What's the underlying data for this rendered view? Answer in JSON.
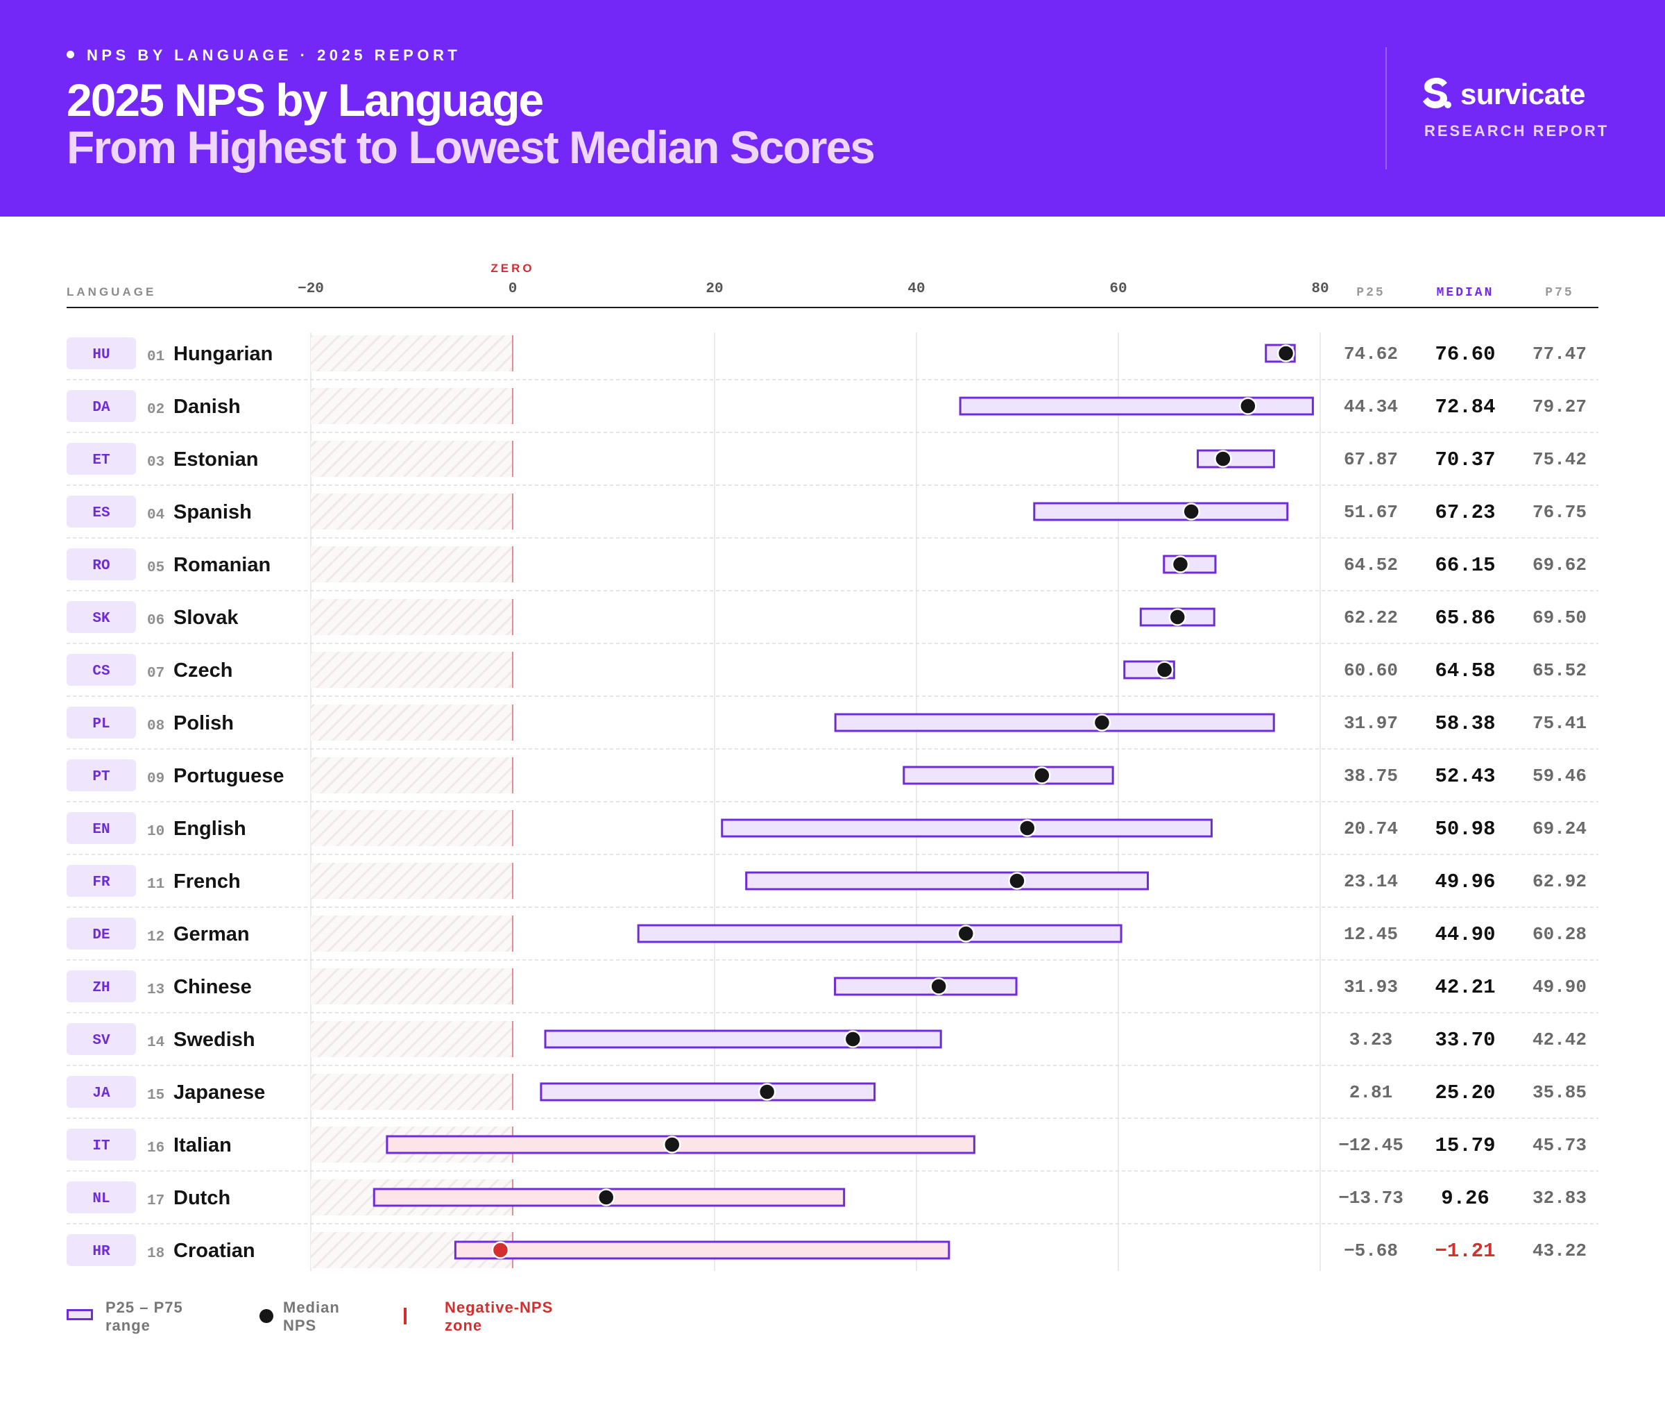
{
  "header": {
    "kicker": "NPS BY LANGUAGE · 2025 REPORT",
    "title_line1": "2025 NPS by Language",
    "title_line2": "From Highest to Lowest Median Scores",
    "brand_name": "survicate",
    "brand_sub": "RESEARCH REPORT"
  },
  "colors": {
    "header_bg": "#7328f7",
    "range_border": "#6e2bd9",
    "range_fill": "#efe4fd",
    "range_fill_negative": "#fde4e8",
    "median_dot": "#161616",
    "negative": "#d32f2f",
    "badge_bg": "#efe6fd",
    "badge_text": "#6e2bd9",
    "median_header": "#7328f7"
  },
  "columns": {
    "language": "LANGUAGE",
    "p25": "P25",
    "median": "MEDIAN",
    "p75": "P75",
    "zero_label": "ZERO"
  },
  "legend": {
    "range": [
      "P25 – P75",
      "range"
    ],
    "median": [
      "Median",
      "NPS"
    ],
    "negative": [
      "Negative-NPS",
      "zone"
    ]
  },
  "chart_data": {
    "type": "range",
    "title": "2025 NPS by Language",
    "subtitle": "From Highest to Lowest Median Scores",
    "xlim": [
      -20,
      80
    ],
    "xticks": [
      -20,
      0,
      20,
      40,
      60,
      80
    ],
    "rows": [
      {
        "rank": "01",
        "code": "HU",
        "language": "Hungarian",
        "p25": 74.62,
        "median": 76.6,
        "p75": 77.47
      },
      {
        "rank": "02",
        "code": "DA",
        "language": "Danish",
        "p25": 44.34,
        "median": 72.84,
        "p75": 79.27
      },
      {
        "rank": "03",
        "code": "ET",
        "language": "Estonian",
        "p25": 67.87,
        "median": 70.37,
        "p75": 75.42
      },
      {
        "rank": "04",
        "code": "ES",
        "language": "Spanish",
        "p25": 51.67,
        "median": 67.23,
        "p75": 76.75
      },
      {
        "rank": "05",
        "code": "RO",
        "language": "Romanian",
        "p25": 64.52,
        "median": 66.15,
        "p75": 69.62
      },
      {
        "rank": "06",
        "code": "SK",
        "language": "Slovak",
        "p25": 62.22,
        "median": 65.86,
        "p75": 69.5
      },
      {
        "rank": "07",
        "code": "CS",
        "language": "Czech",
        "p25": 60.6,
        "median": 64.58,
        "p75": 65.52
      },
      {
        "rank": "08",
        "code": "PL",
        "language": "Polish",
        "p25": 31.97,
        "median": 58.38,
        "p75": 75.41
      },
      {
        "rank": "09",
        "code": "PT",
        "language": "Portuguese",
        "p25": 38.75,
        "median": 52.43,
        "p75": 59.46
      },
      {
        "rank": "10",
        "code": "EN",
        "language": "English",
        "p25": 20.74,
        "median": 50.98,
        "p75": 69.24
      },
      {
        "rank": "11",
        "code": "FR",
        "language": "French",
        "p25": 23.14,
        "median": 49.96,
        "p75": 62.92
      },
      {
        "rank": "12",
        "code": "DE",
        "language": "German",
        "p25": 12.45,
        "median": 44.9,
        "p75": 60.28
      },
      {
        "rank": "13",
        "code": "ZH",
        "language": "Chinese",
        "p25": 31.93,
        "median": 42.21,
        "p75": 49.9
      },
      {
        "rank": "14",
        "code": "SV",
        "language": "Swedish",
        "p25": 3.23,
        "median": 33.7,
        "p75": 42.42
      },
      {
        "rank": "15",
        "code": "JA",
        "language": "Japanese",
        "p25": 2.81,
        "median": 25.2,
        "p75": 35.85
      },
      {
        "rank": "16",
        "code": "IT",
        "language": "Italian",
        "p25": -12.45,
        "median": 15.79,
        "p75": 45.73
      },
      {
        "rank": "17",
        "code": "NL",
        "language": "Dutch",
        "p25": -13.73,
        "median": 9.26,
        "p75": 32.83
      },
      {
        "rank": "18",
        "code": "HR",
        "language": "Croatian",
        "p25": -5.68,
        "median": -1.21,
        "p75": 43.22
      }
    ]
  }
}
